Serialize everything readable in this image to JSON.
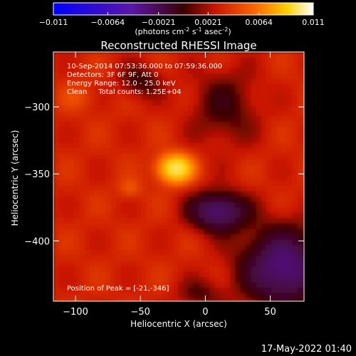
{
  "chart_data": {
    "type": "heatmap",
    "title": "Reconstructed RHESSI Image",
    "xlabel": "Heliocentric X (arcsec)",
    "ylabel": "Heliocentric Y (arcsec)",
    "xlim": [
      -117,
      76
    ],
    "ylim": [
      -445,
      -259
    ],
    "xticks": [
      -100,
      -50,
      0,
      50
    ],
    "yticks": [
      -300,
      -350,
      -400
    ],
    "colorbar": {
      "ticks": [
        -0.011,
        -0.0064,
        -0.0021,
        0.0021,
        0.0064,
        0.011
      ],
      "range": [
        -0.011,
        0.011
      ],
      "label_parts": [
        "(photons cm",
        "-2",
        " s",
        "-1",
        " asec",
        "-2",
        ")"
      ]
    },
    "annotations": [
      "10-Sep-2014 07:53:36.000 to 07:59:36.000",
      "Detectors: 3F 6F 9F, Att 0",
      "Energy Range: 12.0 - 25.0 keV",
      "Clean     Total counts: 1.25E+04"
    ],
    "peak_label": "Position of Peak = [-21,-346]",
    "sources": [
      {
        "x": -23,
        "y": -346,
        "sx": 9,
        "sy": 7,
        "amp": 0.0065
      },
      {
        "x": -58,
        "y": -361,
        "sx": 6,
        "sy": 5,
        "amp": 0.0012
      },
      {
        "x": -98,
        "y": -293,
        "sx": 10,
        "sy": 7,
        "amp": 0.0008
      }
    ],
    "holes": [
      {
        "x": 10,
        "y": -378,
        "sx": 15,
        "sy": 10,
        "amp": -0.0048
      },
      {
        "x": 15,
        "y": -300,
        "sx": 18,
        "sy": 20,
        "amp": -0.0018
      },
      {
        "x": -50,
        "y": -281,
        "sx": 12,
        "sy": 9,
        "amp": -0.0018
      },
      {
        "x": 60,
        "y": -420,
        "sx": 22,
        "sy": 20,
        "amp": -0.005
      },
      {
        "x": -5,
        "y": -440,
        "sx": 12,
        "sy": 8,
        "amp": -0.0015
      }
    ],
    "background": 0.0017
  },
  "footer": {
    "date": "17-May-2022 01:40"
  }
}
